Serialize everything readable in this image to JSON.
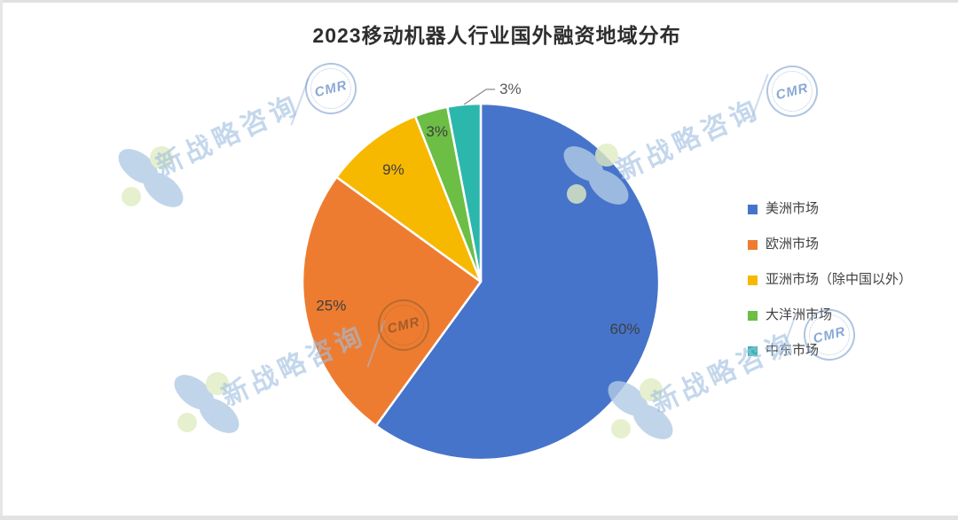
{
  "chart_data": {
    "type": "pie",
    "title": "2023移动机器人行业国外融资地域分布",
    "series": [
      {
        "name": "美洲市场",
        "value": 60,
        "label": "60%",
        "color": "#4674CB"
      },
      {
        "name": "欧洲市场",
        "value": 25,
        "label": "25%",
        "color": "#ED7C31"
      },
      {
        "name": "亚洲市场（除中国以外）",
        "value": 9,
        "label": "9%",
        "color": "#F7B800"
      },
      {
        "name": "大洋洲市场",
        "value": 3,
        "label": "3%",
        "color": "#6CBE45"
      },
      {
        "name": "中东市场",
        "value": 3,
        "label": "3%",
        "color": "#2CB7AD"
      }
    ],
    "start_angle": 0,
    "direction": "clockwise",
    "legend_position": "right",
    "label_color": "#3f3f3f",
    "outside_label_color": "#595959",
    "slice_border_color": "#ffffff"
  },
  "watermark": {
    "brand_text": "新战略咨询",
    "stamp_text": "CMR"
  }
}
